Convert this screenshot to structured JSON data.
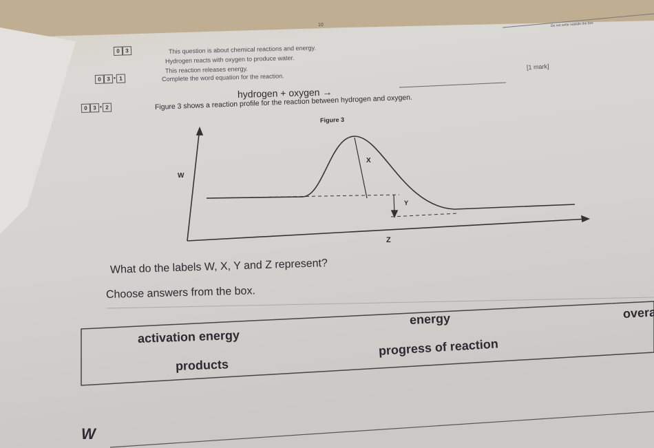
{
  "page_number": "10",
  "margin_note": "Do not write outside the box",
  "question": {
    "number": [
      "0",
      "3"
    ],
    "intro": [
      "This question is about chemical reactions and energy.",
      "Hydrogen reacts with oxygen to produce water.",
      "This reaction releases energy."
    ]
  },
  "part1": {
    "number": [
      "0",
      "3",
      "1"
    ],
    "instruction": "Complete the word equation for the reaction.",
    "marks": "[1 mark]",
    "equation": "hydrogen + oxygen →"
  },
  "part2": {
    "number": [
      "0",
      "3",
      "2"
    ],
    "instruction": "Figure 3 shows a reaction profile for the reaction between hydrogen and oxygen.",
    "figure": {
      "title": "Figure 3",
      "labels": [
        "W",
        "X",
        "Y",
        "Z"
      ]
    },
    "question": "What do the labels W, X, Y and Z represent?",
    "prompt": "Choose answers from the box.",
    "options": [
      "activation energy",
      "energy",
      "overa",
      "products",
      "progress of reaction"
    ],
    "answer_label": "W"
  }
}
